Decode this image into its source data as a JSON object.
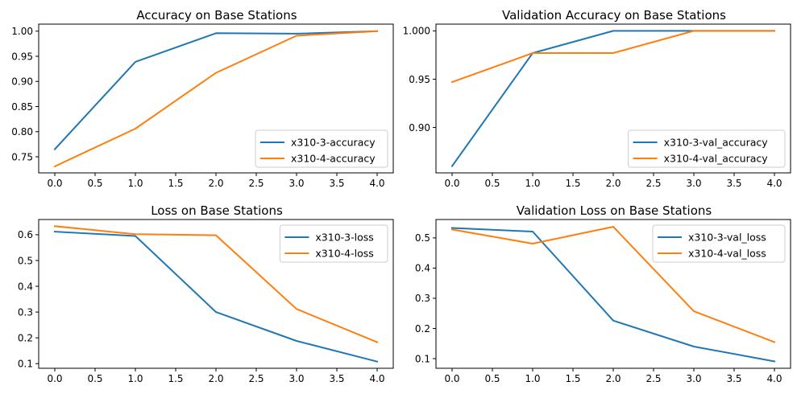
{
  "chart_data": [
    {
      "type": "line",
      "title": "Accuracy on Base Stations",
      "xlabel": "",
      "ylabel": "",
      "xlim": [
        -0.2,
        4.2
      ],
      "ylim": [
        0.718,
        1.014
      ],
      "xticks": [
        0,
        0.5,
        1,
        1.5,
        2,
        2.5,
        3,
        3.5,
        4
      ],
      "xtick_labels": [
        "0.0",
        "0.5",
        "1.0",
        "1.5",
        "2.0",
        "2.5",
        "3.0",
        "3.5",
        "4.0"
      ],
      "yticks": [
        0.75,
        0.8,
        0.85,
        0.9,
        0.95,
        1.0
      ],
      "ytick_labels": [
        "0.75",
        "0.80",
        "0.85",
        "0.90",
        "0.95",
        "1.00"
      ],
      "legend": "lower-right",
      "grid": false,
      "x": [
        0,
        1,
        2,
        3,
        4
      ],
      "series": [
        {
          "name": "x310-3-accuracy",
          "color": "#1f77b4",
          "values": [
            0.765,
            0.939,
            0.996,
            0.995,
            1.0
          ]
        },
        {
          "name": "x310-4-accuracy",
          "color": "#ff7f0e",
          "values": [
            0.731,
            0.806,
            0.917,
            0.991,
            1.0
          ]
        }
      ]
    },
    {
      "type": "line",
      "title": "Validation Accuracy on Base Stations",
      "xlabel": "",
      "ylabel": "",
      "xlim": [
        -0.2,
        4.2
      ],
      "ylim": [
        0.853,
        1.007
      ],
      "xticks": [
        0,
        0.5,
        1,
        1.5,
        2,
        2.5,
        3,
        3.5,
        4
      ],
      "xtick_labels": [
        "0.0",
        "0.5",
        "1.0",
        "1.5",
        "2.0",
        "2.5",
        "3.0",
        "3.5",
        "4.0"
      ],
      "yticks": [
        0.9,
        0.95,
        1.0
      ],
      "ytick_labels": [
        "0.90",
        "0.95",
        "1.000"
      ],
      "legend": "lower-right",
      "grid": false,
      "x": [
        0,
        1,
        2,
        3,
        4
      ],
      "series": [
        {
          "name": "x310-3-val_accuracy",
          "color": "#1f77b4",
          "values": [
            0.86,
            0.977,
            1.0,
            1.0,
            1.0
          ]
        },
        {
          "name": "x310-4-val_accuracy",
          "color": "#ff7f0e",
          "values": [
            0.947,
            0.977,
            0.977,
            1.0,
            1.0
          ]
        }
      ]
    },
    {
      "type": "line",
      "title": "Loss on Base Stations",
      "xlabel": "",
      "ylabel": "",
      "xlim": [
        -0.2,
        4.2
      ],
      "ylim": [
        0.082,
        0.659
      ],
      "xticks": [
        0,
        0.5,
        1,
        1.5,
        2,
        2.5,
        3,
        3.5,
        4
      ],
      "xtick_labels": [
        "0.0",
        "0.5",
        "1.0",
        "1.5",
        "2.0",
        "2.5",
        "3.0",
        "3.5",
        "4.0"
      ],
      "yticks": [
        0.1,
        0.2,
        0.3,
        0.4,
        0.5,
        0.6
      ],
      "ytick_labels": [
        "0.1",
        "0.2",
        "0.3",
        "0.4",
        "0.5",
        "0.6"
      ],
      "legend": "upper-right",
      "grid": false,
      "x": [
        0,
        1,
        2,
        3,
        4
      ],
      "series": [
        {
          "name": "x310-3-loss",
          "color": "#1f77b4",
          "values": [
            0.612,
            0.595,
            0.3,
            0.188,
            0.108
          ]
        },
        {
          "name": "x310-4-loss",
          "color": "#ff7f0e",
          "values": [
            0.633,
            0.602,
            0.598,
            0.312,
            0.183
          ]
        }
      ]
    },
    {
      "type": "line",
      "title": "Validation Loss on Base Stations",
      "xlabel": "",
      "ylabel": "",
      "xlim": [
        -0.2,
        4.2
      ],
      "ylim": [
        0.068,
        0.561
      ],
      "xticks": [
        0,
        0.5,
        1,
        1.5,
        2,
        2.5,
        3,
        3.5,
        4
      ],
      "xtick_labels": [
        "0.0",
        "0.5",
        "1.0",
        "1.5",
        "2.0",
        "2.5",
        "3.0",
        "3.5",
        "4.0"
      ],
      "yticks": [
        0.1,
        0.2,
        0.3,
        0.4,
        0.5
      ],
      "ytick_labels": [
        "0.1",
        "0.2",
        "0.3",
        "0.4",
        "0.5"
      ],
      "legend": "upper-right",
      "grid": false,
      "x": [
        0,
        1,
        2,
        3,
        4
      ],
      "series": [
        {
          "name": "x310-3-val_loss",
          "color": "#1f77b4",
          "values": [
            0.533,
            0.521,
            0.226,
            0.14,
            0.091
          ]
        },
        {
          "name": "x310-4-val_loss",
          "color": "#ff7f0e",
          "values": [
            0.528,
            0.481,
            0.537,
            0.257,
            0.155
          ]
        }
      ]
    }
  ]
}
